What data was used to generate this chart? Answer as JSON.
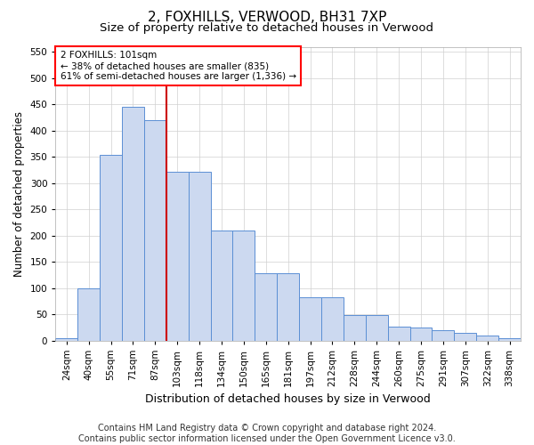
{
  "title": "2, FOXHILLS, VERWOOD, BH31 7XP",
  "subtitle": "Size of property relative to detached houses in Verwood",
  "xlabel": "Distribution of detached houses by size in Verwood",
  "ylabel": "Number of detached properties",
  "footer1": "Contains HM Land Registry data © Crown copyright and database right 2024.",
  "footer2": "Contains public sector information licensed under the Open Government Licence v3.0.",
  "annotation_line1": "2 FOXHILLS: 101sqm",
  "annotation_line2": "← 38% of detached houses are smaller (835)",
  "annotation_line3": "61% of semi-detached houses are larger (1,336) →",
  "bar_color": "#ccd9f0",
  "bar_edge_color": "#5b8fd4",
  "highlight_color": "#cc0000",
  "categories": [
    "24sqm",
    "40sqm",
    "55sqm",
    "71sqm",
    "87sqm",
    "103sqm",
    "118sqm",
    "134sqm",
    "150sqm",
    "165sqm",
    "181sqm",
    "197sqm",
    "212sqm",
    "228sqm",
    "244sqm",
    "260sqm",
    "275sqm",
    "291sqm",
    "307sqm",
    "322sqm",
    "338sqm"
  ],
  "values": [
    5,
    100,
    353,
    445,
    420,
    321,
    321,
    210,
    210,
    128,
    128,
    83,
    83,
    48,
    48,
    27,
    25,
    20,
    15,
    10,
    5
  ],
  "ylim": [
    0,
    560
  ],
  "yticks": [
    0,
    50,
    100,
    150,
    200,
    250,
    300,
    350,
    400,
    450,
    500,
    550
  ],
  "highlight_bar_index": 4,
  "title_fontsize": 11,
  "subtitle_fontsize": 9.5,
  "xlabel_fontsize": 9,
  "ylabel_fontsize": 8.5,
  "tick_fontsize": 7.5,
  "annotation_fontsize": 7.5,
  "footer_fontsize": 7
}
